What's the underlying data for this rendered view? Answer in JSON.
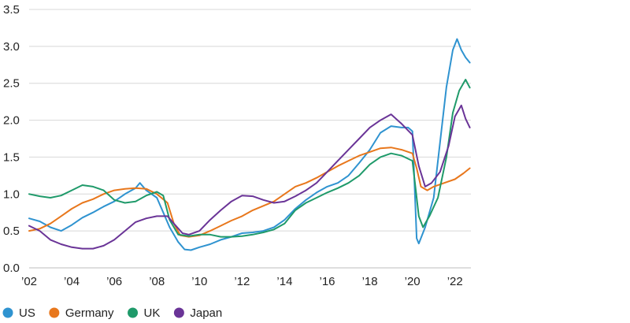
{
  "chart_data": {
    "type": "line",
    "title": "",
    "xlabel": "",
    "ylabel": "",
    "xlim": [
      2002,
      2022.75
    ],
    "ylim": [
      0,
      3.5
    ],
    "grid": true,
    "legend_position": "bottom-left",
    "x_ticks": [
      {
        "value": 2002,
        "label": "’02"
      },
      {
        "value": 2004,
        "label": "’04"
      },
      {
        "value": 2006,
        "label": "’06"
      },
      {
        "value": 2008,
        "label": "’08"
      },
      {
        "value": 2010,
        "label": "’10"
      },
      {
        "value": 2012,
        "label": "’12"
      },
      {
        "value": 2014,
        "label": "’14"
      },
      {
        "value": 2016,
        "label": "’16"
      },
      {
        "value": 2018,
        "label": "’18"
      },
      {
        "value": 2020,
        "label": "’20"
      },
      {
        "value": 2022,
        "label": "’22"
      }
    ],
    "y_ticks": [
      {
        "value": 0,
        "label": "0.0"
      },
      {
        "value": 0.5,
        "label": "0.5"
      },
      {
        "value": 1.0,
        "label": "1.0"
      },
      {
        "value": 1.5,
        "label": "1.5"
      },
      {
        "value": 2.0,
        "label": "2.0"
      },
      {
        "value": 2.5,
        "label": "2.5"
      },
      {
        "value": 3.0,
        "label": "3.0"
      },
      {
        "value": 3.5,
        "label": "3.5"
      }
    ],
    "series": [
      {
        "name": "US",
        "color": "#2f93d0",
        "points": [
          [
            2002.0,
            0.67
          ],
          [
            2002.5,
            0.63
          ],
          [
            2003.0,
            0.55
          ],
          [
            2003.5,
            0.5
          ],
          [
            2004.0,
            0.58
          ],
          [
            2004.5,
            0.68
          ],
          [
            2005.0,
            0.75
          ],
          [
            2005.5,
            0.83
          ],
          [
            2006.0,
            0.9
          ],
          [
            2006.5,
            1.0
          ],
          [
            2007.0,
            1.08
          ],
          [
            2007.2,
            1.15
          ],
          [
            2007.5,
            1.05
          ],
          [
            2008.0,
            0.95
          ],
          [
            2008.3,
            0.75
          ],
          [
            2008.6,
            0.55
          ],
          [
            2009.0,
            0.35
          ],
          [
            2009.3,
            0.25
          ],
          [
            2009.6,
            0.24
          ],
          [
            2010.0,
            0.28
          ],
          [
            2010.5,
            0.32
          ],
          [
            2011.0,
            0.38
          ],
          [
            2011.5,
            0.42
          ],
          [
            2012.0,
            0.47
          ],
          [
            2012.5,
            0.48
          ],
          [
            2013.0,
            0.5
          ],
          [
            2013.5,
            0.55
          ],
          [
            2014.0,
            0.65
          ],
          [
            2014.5,
            0.8
          ],
          [
            2015.0,
            0.92
          ],
          [
            2015.5,
            1.02
          ],
          [
            2016.0,
            1.1
          ],
          [
            2016.5,
            1.15
          ],
          [
            2017.0,
            1.25
          ],
          [
            2017.5,
            1.42
          ],
          [
            2018.0,
            1.6
          ],
          [
            2018.5,
            1.83
          ],
          [
            2019.0,
            1.92
          ],
          [
            2019.5,
            1.9
          ],
          [
            2019.8,
            1.9
          ],
          [
            2020.0,
            1.85
          ],
          [
            2020.2,
            0.4
          ],
          [
            2020.3,
            0.33
          ],
          [
            2020.6,
            0.55
          ],
          [
            2021.0,
            0.95
          ],
          [
            2021.3,
            1.7
          ],
          [
            2021.6,
            2.45
          ],
          [
            2021.9,
            2.95
          ],
          [
            2022.1,
            3.1
          ],
          [
            2022.3,
            2.95
          ],
          [
            2022.5,
            2.85
          ],
          [
            2022.7,
            2.78
          ]
        ]
      },
      {
        "name": "Germany",
        "color": "#e8771c",
        "points": [
          [
            2002.0,
            0.5
          ],
          [
            2002.5,
            0.53
          ],
          [
            2003.0,
            0.6
          ],
          [
            2003.5,
            0.7
          ],
          [
            2004.0,
            0.8
          ],
          [
            2004.5,
            0.88
          ],
          [
            2005.0,
            0.93
          ],
          [
            2005.5,
            1.0
          ],
          [
            2006.0,
            1.05
          ],
          [
            2006.5,
            1.07
          ],
          [
            2007.0,
            1.08
          ],
          [
            2007.5,
            1.07
          ],
          [
            2008.0,
            1.0
          ],
          [
            2008.5,
            0.88
          ],
          [
            2008.8,
            0.6
          ],
          [
            2009.1,
            0.44
          ],
          [
            2009.5,
            0.42
          ],
          [
            2010.0,
            0.44
          ],
          [
            2010.5,
            0.5
          ],
          [
            2011.0,
            0.57
          ],
          [
            2011.5,
            0.64
          ],
          [
            2012.0,
            0.7
          ],
          [
            2012.5,
            0.78
          ],
          [
            2013.0,
            0.84
          ],
          [
            2013.5,
            0.9
          ],
          [
            2014.0,
            1.0
          ],
          [
            2014.5,
            1.1
          ],
          [
            2015.0,
            1.15
          ],
          [
            2015.5,
            1.22
          ],
          [
            2016.0,
            1.3
          ],
          [
            2016.5,
            1.38
          ],
          [
            2017.0,
            1.45
          ],
          [
            2017.5,
            1.52
          ],
          [
            2018.0,
            1.57
          ],
          [
            2018.5,
            1.62
          ],
          [
            2019.0,
            1.63
          ],
          [
            2019.5,
            1.6
          ],
          [
            2020.0,
            1.55
          ],
          [
            2020.2,
            1.35
          ],
          [
            2020.4,
            1.1
          ],
          [
            2020.7,
            1.05
          ],
          [
            2021.0,
            1.1
          ],
          [
            2021.5,
            1.15
          ],
          [
            2022.0,
            1.2
          ],
          [
            2022.4,
            1.28
          ],
          [
            2022.7,
            1.35
          ]
        ]
      },
      {
        "name": "UK",
        "color": "#1f9a6a",
        "points": [
          [
            2002.0,
            1.0
          ],
          [
            2002.5,
            0.97
          ],
          [
            2003.0,
            0.95
          ],
          [
            2003.5,
            0.98
          ],
          [
            2004.0,
            1.05
          ],
          [
            2004.5,
            1.12
          ],
          [
            2005.0,
            1.1
          ],
          [
            2005.5,
            1.05
          ],
          [
            2006.0,
            0.92
          ],
          [
            2006.5,
            0.88
          ],
          [
            2007.0,
            0.9
          ],
          [
            2007.5,
            0.98
          ],
          [
            2008.0,
            1.03
          ],
          [
            2008.3,
            0.98
          ],
          [
            2008.6,
            0.65
          ],
          [
            2009.0,
            0.45
          ],
          [
            2009.5,
            0.43
          ],
          [
            2010.0,
            0.45
          ],
          [
            2010.5,
            0.45
          ],
          [
            2011.0,
            0.42
          ],
          [
            2011.5,
            0.42
          ],
          [
            2012.0,
            0.43
          ],
          [
            2012.5,
            0.45
          ],
          [
            2013.0,
            0.48
          ],
          [
            2013.5,
            0.52
          ],
          [
            2014.0,
            0.6
          ],
          [
            2014.5,
            0.78
          ],
          [
            2015.0,
            0.88
          ],
          [
            2015.5,
            0.95
          ],
          [
            2016.0,
            1.02
          ],
          [
            2016.5,
            1.08
          ],
          [
            2017.0,
            1.15
          ],
          [
            2017.5,
            1.25
          ],
          [
            2018.0,
            1.4
          ],
          [
            2018.5,
            1.5
          ],
          [
            2019.0,
            1.55
          ],
          [
            2019.5,
            1.52
          ],
          [
            2020.0,
            1.45
          ],
          [
            2020.3,
            0.7
          ],
          [
            2020.5,
            0.55
          ],
          [
            2020.8,
            0.7
          ],
          [
            2021.2,
            0.95
          ],
          [
            2021.6,
            1.5
          ],
          [
            2021.9,
            2.1
          ],
          [
            2022.2,
            2.4
          ],
          [
            2022.5,
            2.55
          ],
          [
            2022.7,
            2.44
          ]
        ]
      },
      {
        "name": "Japan",
        "color": "#6a3497",
        "points": [
          [
            2002.0,
            0.57
          ],
          [
            2002.5,
            0.5
          ],
          [
            2003.0,
            0.38
          ],
          [
            2003.5,
            0.32
          ],
          [
            2004.0,
            0.28
          ],
          [
            2004.5,
            0.26
          ],
          [
            2005.0,
            0.26
          ],
          [
            2005.5,
            0.3
          ],
          [
            2006.0,
            0.38
          ],
          [
            2006.5,
            0.5
          ],
          [
            2007.0,
            0.62
          ],
          [
            2007.5,
            0.67
          ],
          [
            2008.0,
            0.7
          ],
          [
            2008.5,
            0.7
          ],
          [
            2008.8,
            0.6
          ],
          [
            2009.2,
            0.47
          ],
          [
            2009.5,
            0.45
          ],
          [
            2010.0,
            0.5
          ],
          [
            2010.5,
            0.65
          ],
          [
            2011.0,
            0.78
          ],
          [
            2011.5,
            0.9
          ],
          [
            2012.0,
            0.98
          ],
          [
            2012.5,
            0.97
          ],
          [
            2013.0,
            0.92
          ],
          [
            2013.5,
            0.88
          ],
          [
            2014.0,
            0.9
          ],
          [
            2014.5,
            0.97
          ],
          [
            2015.0,
            1.05
          ],
          [
            2015.5,
            1.15
          ],
          [
            2016.0,
            1.3
          ],
          [
            2016.5,
            1.45
          ],
          [
            2017.0,
            1.6
          ],
          [
            2017.5,
            1.75
          ],
          [
            2018.0,
            1.9
          ],
          [
            2018.5,
            2.0
          ],
          [
            2019.0,
            2.08
          ],
          [
            2019.5,
            1.95
          ],
          [
            2020.0,
            1.8
          ],
          [
            2020.3,
            1.38
          ],
          [
            2020.6,
            1.1
          ],
          [
            2020.9,
            1.15
          ],
          [
            2021.3,
            1.3
          ],
          [
            2021.7,
            1.65
          ],
          [
            2022.0,
            2.05
          ],
          [
            2022.3,
            2.2
          ],
          [
            2022.5,
            2.02
          ],
          [
            2022.7,
            1.9
          ]
        ]
      }
    ]
  }
}
